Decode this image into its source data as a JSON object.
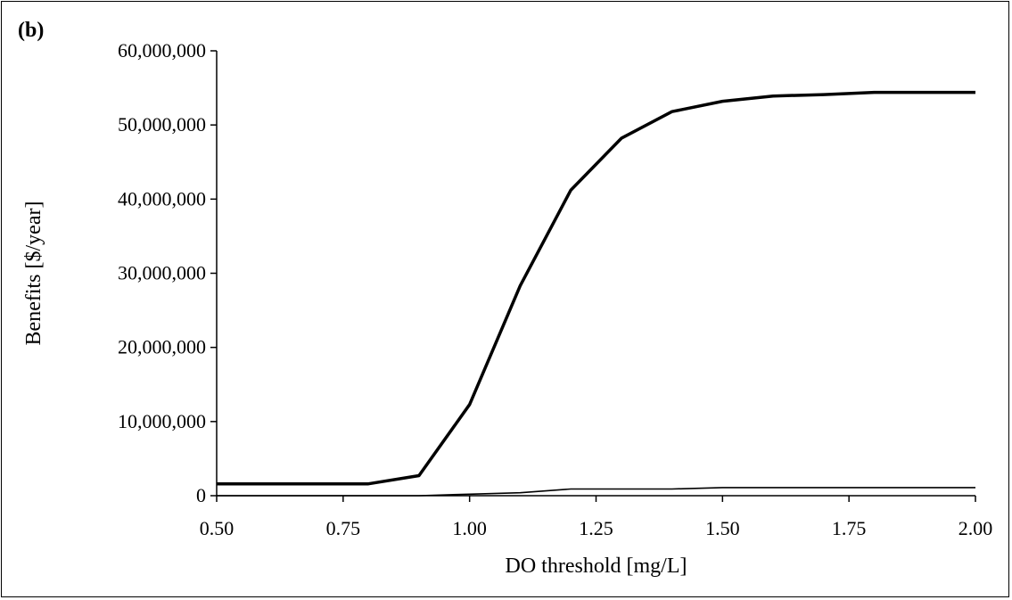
{
  "panel_label": "(b)",
  "chart_data": {
    "type": "line",
    "title": "",
    "xlabel": "DO threshold [mg/L]",
    "ylabel": "Benefits [$/year]",
    "xlim": [
      0.5,
      2.0
    ],
    "ylim": [
      0,
      60000000
    ],
    "x_ticks": [
      "0.50",
      "0.75",
      "1.00",
      "1.25",
      "1.50",
      "1.75",
      "2.00"
    ],
    "x_tick_values": [
      0.5,
      0.75,
      1.0,
      1.25,
      1.5,
      1.75,
      2.0
    ],
    "y_ticks": [
      "0",
      "10,000,000",
      "20,000,000",
      "30,000,000",
      "40,000,000",
      "50,000,000",
      "60,000,000"
    ],
    "y_tick_values": [
      0,
      10000000,
      20000000,
      30000000,
      40000000,
      50000000,
      60000000
    ],
    "grid": false,
    "legend": "none",
    "series": [
      {
        "style": "thick",
        "color": "#000000",
        "x": [
          0.5,
          0.6,
          0.7,
          0.8,
          0.9,
          1.0,
          1.1,
          1.2,
          1.3,
          1.4,
          1.5,
          1.6,
          1.7,
          1.8,
          1.9,
          2.0
        ],
        "y": [
          1600000,
          1600000,
          1600000,
          1600000,
          2700000,
          12300000,
          28300000,
          41200000,
          48200000,
          51800000,
          53200000,
          53900000,
          54100000,
          54400000,
          54400000,
          54400000
        ]
      },
      {
        "style": "thin",
        "color": "#000000",
        "x": [
          0.5,
          0.6,
          0.7,
          0.8,
          0.9,
          1.0,
          1.1,
          1.2,
          1.3,
          1.4,
          1.5,
          1.6,
          1.7,
          1.8,
          1.9,
          2.0
        ],
        "y": [
          0,
          0,
          0,
          0,
          0,
          200000,
          400000,
          900000,
          900000,
          900000,
          1100000,
          1100000,
          1100000,
          1100000,
          1100000,
          1100000
        ]
      }
    ]
  }
}
